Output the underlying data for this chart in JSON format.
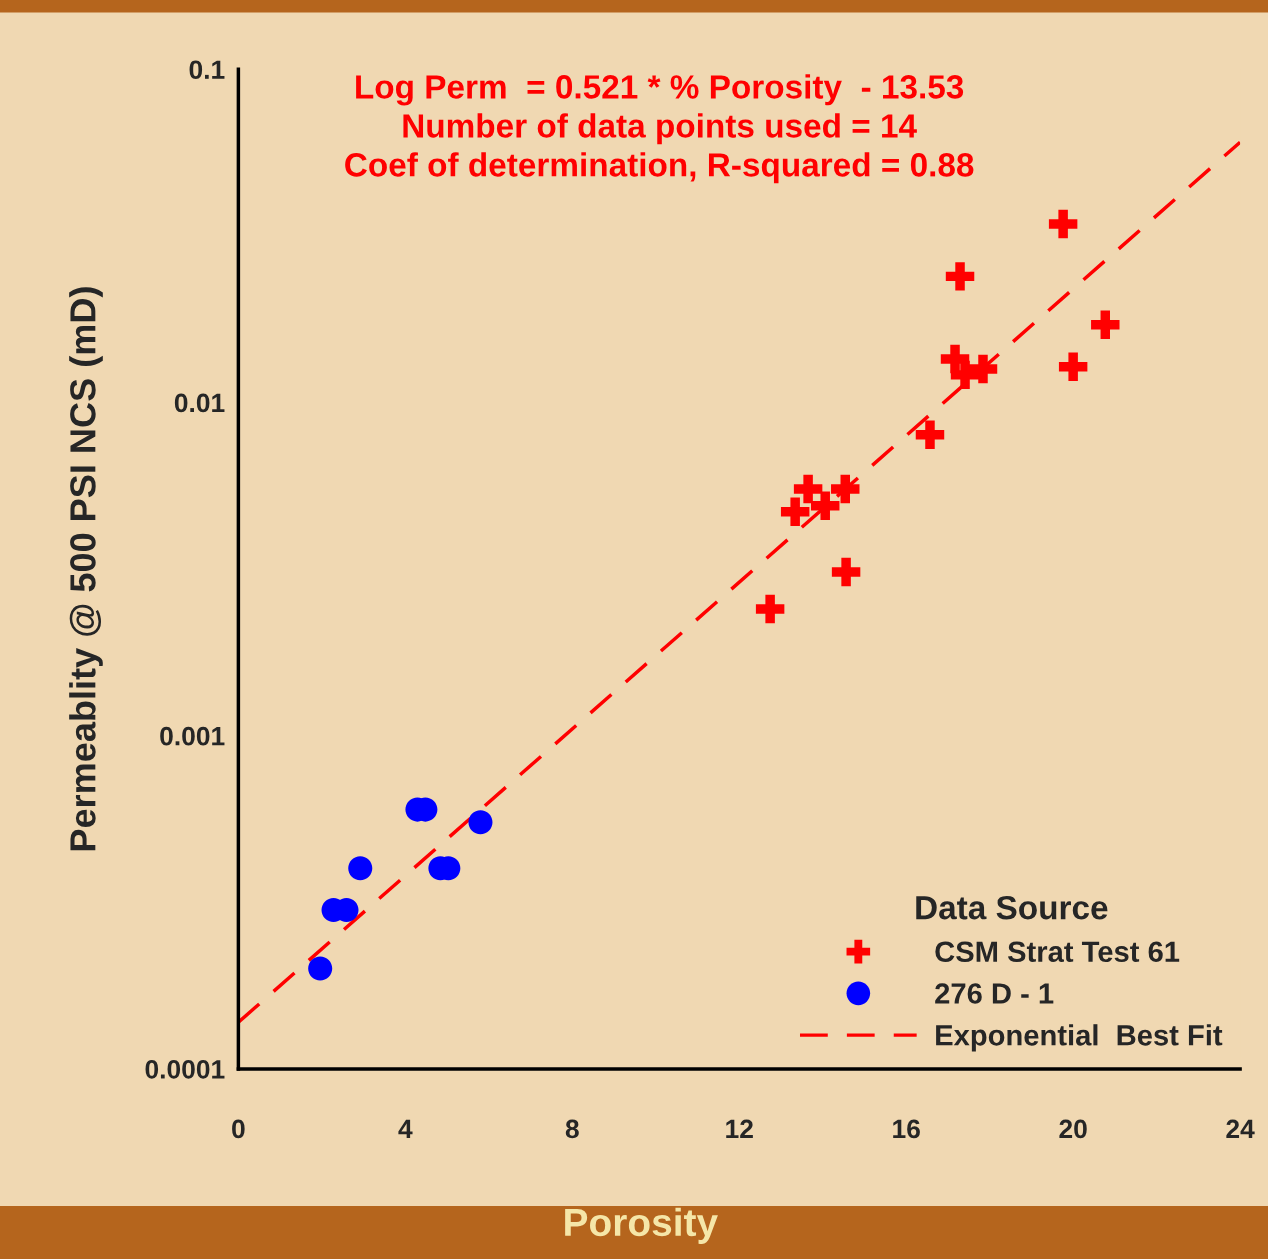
{
  "chart_data": {
    "type": "scatter",
    "xlabel": "Porosity",
    "ylabel": "Permeablity @ 500 PSI NCS (mD)",
    "legend_title": "Data Source",
    "legend": "bottom right",
    "log": "y",
    "grid": false,
    "xlim": [
      0,
      24
    ],
    "xticks": [
      0,
      4,
      8,
      12,
      16,
      20,
      24
    ],
    "ylim": [
      0.0001,
      0.1
    ],
    "yticks": [
      0.0001,
      0.001,
      0.01,
      0.1
    ],
    "annotations": [
      "Log Perm  = 0.521 * % Porosity  - 13.53",
      "Number of data points used = 14",
      "Coef of determination, R-squared = 0.88"
    ],
    "series": [
      {
        "name": "CSM Strat Test 61",
        "color": "#ff0000",
        "marker": "cross",
        "x": [
          12.74,
          13.34,
          13.65,
          14.06,
          14.54,
          14.56,
          16.57,
          17.17,
          17.29,
          17.41,
          17.84,
          19.76,
          20.0,
          20.77
        ],
        "values": [
          0.0024,
          0.0047,
          0.0055,
          0.0049,
          0.0055,
          0.0031,
          0.008,
          0.0135,
          0.0239,
          0.0121,
          0.0126,
          0.0343,
          0.0128,
          0.0171
        ]
      },
      {
        "name": "276 D - 1",
        "color": "#0000ff",
        "marker": "circle",
        "x": [
          1.96,
          2.28,
          2.59,
          2.92,
          4.29,
          4.48,
          4.84,
          5.03,
          5.8
        ],
        "values": [
          0.0002,
          0.0003,
          0.0003,
          0.0004,
          0.0006,
          0.0006,
          0.0004,
          0.0004,
          0.00055
        ]
      },
      {
        "name": "Exponential  Best Fit",
        "type": "line",
        "color": "#ff0000",
        "line_style": "dashed",
        "marker": "none",
        "x": [
          0,
          24
        ],
        "values": [
          0.000138,
          0.0604
        ]
      }
    ]
  }
}
